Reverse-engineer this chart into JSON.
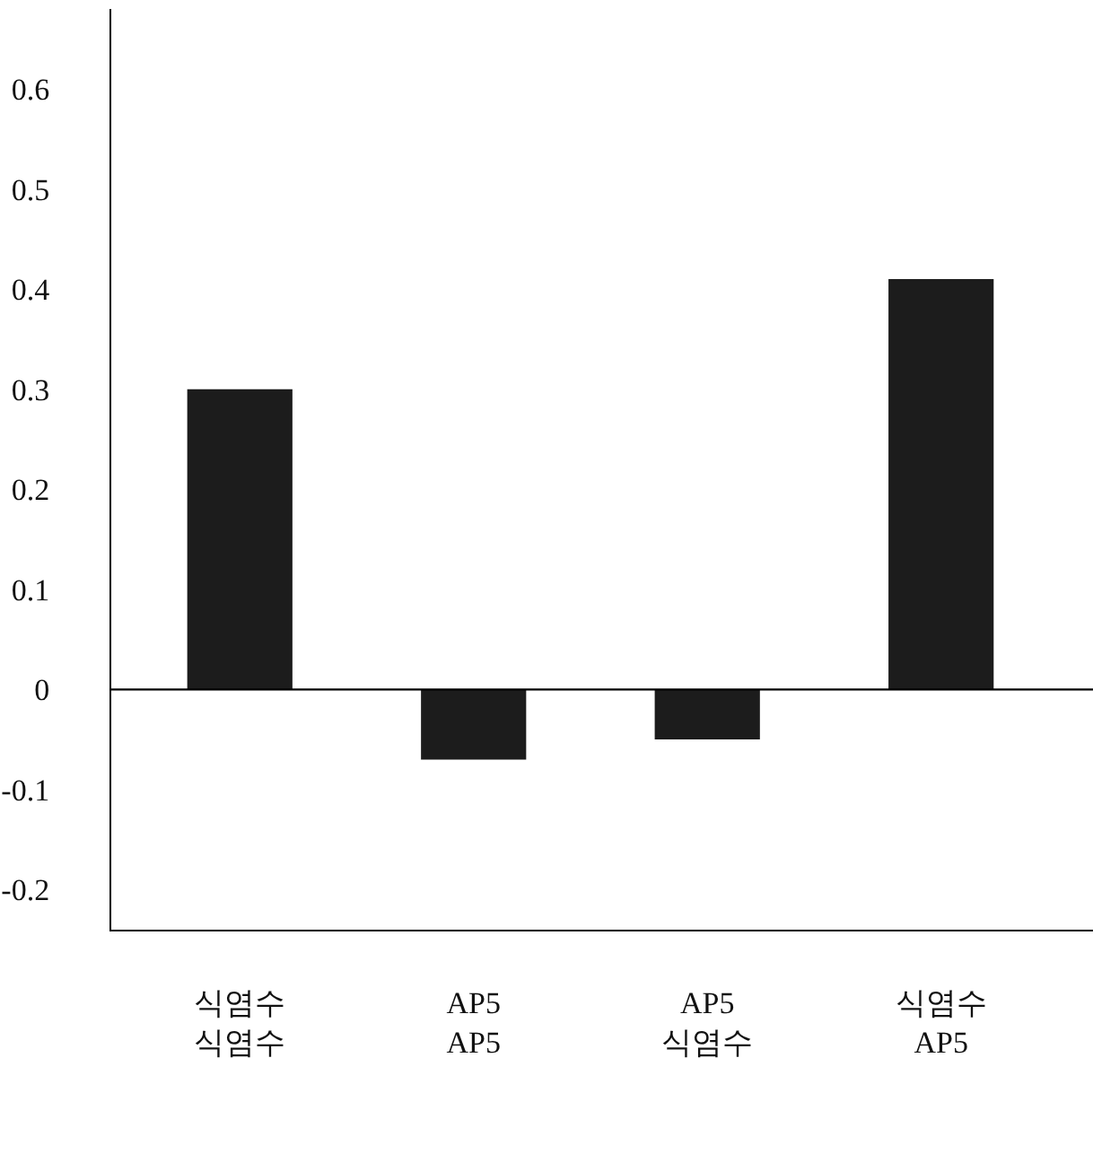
{
  "chart_data": {
    "type": "bar",
    "categories": [
      "식염수\n식염수",
      "AP5\nAP5",
      "AP5\n식염수",
      "식염수\nAP5"
    ],
    "values": [
      0.3,
      -0.07,
      -0.05,
      0.41
    ],
    "color": "#1c1c1c",
    "ylim": [
      -0.24,
      0.68
    ],
    "yticks": [
      -0.2,
      -0.1,
      0,
      0.1,
      0.2,
      0.3,
      0.4,
      0.5,
      0.6
    ],
    "ref_lines": [
      {
        "axis": "y",
        "value": 0,
        "color": "#000000"
      }
    ],
    "legend": false
  }
}
